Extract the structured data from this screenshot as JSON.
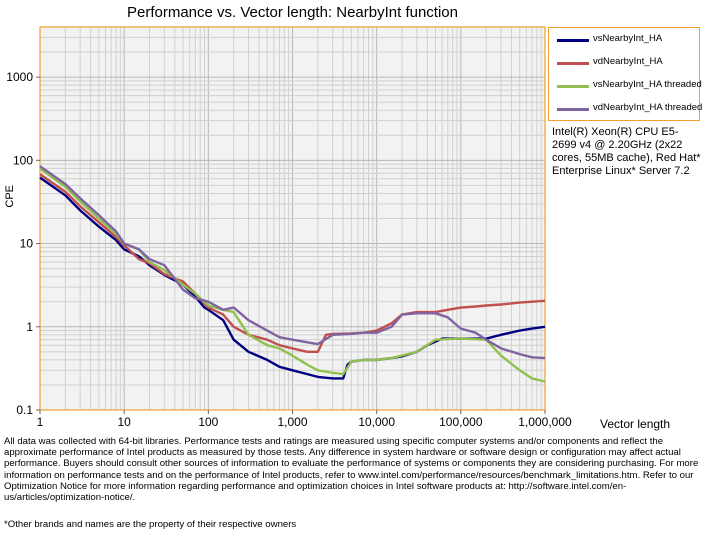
{
  "chart_data": {
    "type": "line",
    "title": "Performance vs. Vector length: NearbyInt function",
    "xlabel": "Vector length",
    "ylabel": "CPE",
    "x_scale": "log",
    "y_scale": "log",
    "xlim": [
      1,
      1000000
    ],
    "ylim": [
      0.1,
      4000
    ],
    "x_ticks": [
      1,
      10,
      100,
      1000,
      10000,
      100000,
      1000000
    ],
    "x_tick_labels": [
      "1",
      "10",
      "100",
      "1,000",
      "10,000",
      "100,000",
      "1,000,000"
    ],
    "y_ticks": [
      0.1,
      1,
      10,
      100,
      1000
    ],
    "y_tick_labels": [
      "0.1",
      "1",
      "10",
      "100",
      "1000"
    ],
    "grid": true,
    "legend_position": "top-right",
    "series": [
      {
        "name": "vsNearbyInt_HA",
        "color": "#000080",
        "x": [
          1,
          2,
          3,
          5,
          8,
          10,
          15,
          20,
          30,
          50,
          70,
          90,
          100,
          150,
          200,
          300,
          500,
          700,
          1000,
          1500,
          2000,
          3000,
          4000,
          4500,
          5000,
          7000,
          10000,
          15000,
          20000,
          30000,
          40000,
          60000,
          100000,
          200000,
          300000,
          500000,
          700000,
          1000000
        ],
        "y": [
          62,
          38,
          25,
          16,
          11,
          8.5,
          7,
          5.5,
          4.2,
          3.2,
          2.3,
          1.7,
          1.6,
          1.2,
          0.7,
          0.5,
          0.4,
          0.33,
          0.3,
          0.27,
          0.25,
          0.24,
          0.24,
          0.35,
          0.38,
          0.4,
          0.4,
          0.42,
          0.44,
          0.5,
          0.6,
          0.72,
          0.72,
          0.72,
          0.8,
          0.9,
          0.95,
          1.0
        ]
      },
      {
        "name": "vdNearbyInt_HA",
        "color": "#c0504d",
        "x": [
          1,
          2,
          3,
          5,
          8,
          10,
          15,
          20,
          30,
          50,
          70,
          90,
          100,
          150,
          200,
          300,
          500,
          700,
          1000,
          1500,
          2000,
          2500,
          3000,
          5000,
          7000,
          10000,
          15000,
          20000,
          30000,
          50000,
          70000,
          100000,
          150000,
          200000,
          300000,
          500000,
          700000,
          1000000
        ],
        "y": [
          68,
          42,
          28,
          18,
          12,
          9.5,
          6.5,
          5.8,
          4.3,
          3.5,
          2.5,
          1.9,
          1.7,
          1.4,
          1.0,
          0.8,
          0.7,
          0.6,
          0.55,
          0.5,
          0.5,
          0.8,
          0.82,
          0.83,
          0.85,
          0.9,
          1.1,
          1.4,
          1.5,
          1.5,
          1.6,
          1.7,
          1.75,
          1.8,
          1.85,
          1.95,
          2.0,
          2.05
        ]
      },
      {
        "name": "vsNearbyInt_HA threaded",
        "color": "#92c050",
        "x": [
          1,
          2,
          3,
          5,
          8,
          10,
          15,
          20,
          30,
          50,
          70,
          100,
          150,
          200,
          300,
          500,
          700,
          1000,
          1500,
          2000,
          3000,
          4000,
          5000,
          7000,
          10000,
          15000,
          20000,
          30000,
          50000,
          100000,
          200000,
          300000,
          500000,
          700000,
          1000000
        ],
        "y": [
          80,
          48,
          32,
          20,
          13,
          10,
          8.5,
          6,
          4.8,
          3.2,
          2.5,
          1.8,
          1.6,
          1.5,
          0.8,
          0.6,
          0.55,
          0.45,
          0.35,
          0.3,
          0.28,
          0.27,
          0.38,
          0.4,
          0.4,
          0.42,
          0.45,
          0.5,
          0.7,
          0.72,
          0.7,
          0.45,
          0.3,
          0.24,
          0.22
        ]
      },
      {
        "name": "vdNearbyInt_HA threaded",
        "color": "#8064a2",
        "x": [
          1,
          2,
          3,
          5,
          8,
          10,
          15,
          20,
          30,
          50,
          70,
          100,
          150,
          200,
          300,
          500,
          700,
          1000,
          1500,
          2000,
          3000,
          5000,
          7000,
          10000,
          15000,
          20000,
          30000,
          50000,
          70000,
          100000,
          150000,
          200000,
          300000,
          500000,
          700000,
          1000000
        ],
        "y": [
          85,
          52,
          35,
          22,
          14,
          10,
          8.5,
          6.5,
          5.5,
          2.8,
          2.2,
          2.0,
          1.6,
          1.7,
          1.2,
          0.9,
          0.75,
          0.7,
          0.65,
          0.62,
          0.8,
          0.82,
          0.85,
          0.85,
          1.0,
          1.4,
          1.45,
          1.45,
          1.3,
          0.95,
          0.85,
          0.7,
          0.55,
          0.47,
          0.43,
          0.42
        ]
      }
    ]
  },
  "cpu_note": "Intel(R) Xeon(R) CPU E5-2699 v4 @ 2.20GHz (2x22 cores, 55MB cache), Red Hat* Enterprise Linux* Server 7.2",
  "disclaimer": "All data was collected with 64-bit libraries. Performance tests and ratings are measured using specific computer systems and/or components and reflect the approximate performance of Intel products as measured by those tests. Any difference in system hardware or software design or configuration may affect actual performance. Buyers should consult other sources of information to evaluate the performance of systems or components they are considering purchasing. For more information on performance tests and on the performance of Intel products, refer to www.intel.com/performance/resources/benchmark_limitations.htm. Refer to our Optimization Notice for more information regarding performance and optimization choices in Intel software products at: http://software.intel.com/en-us/articles/optimization-notice/.",
  "footnote": "*Other brands and names are the property of their respective owners"
}
